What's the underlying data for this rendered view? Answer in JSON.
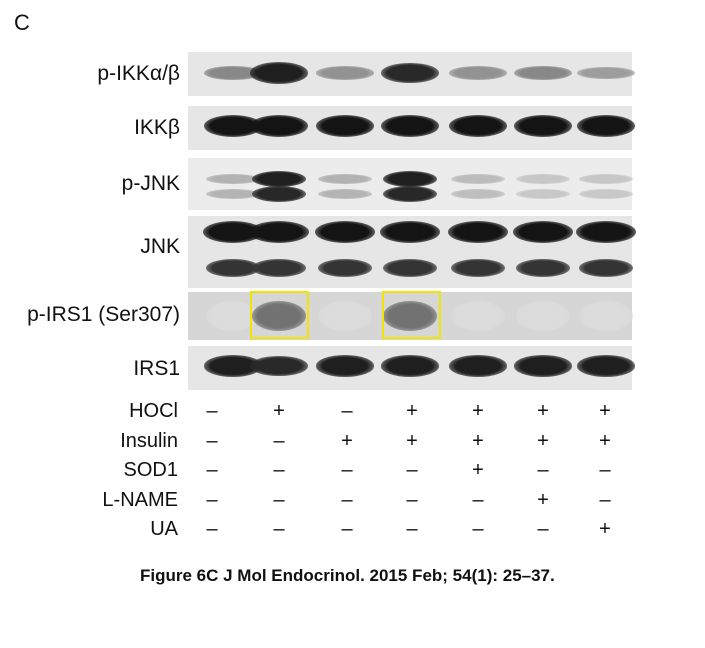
{
  "panel_letter": "C",
  "blots": [
    {
      "label": "p-IKKα/β"
    },
    {
      "label": "IKKβ"
    },
    {
      "label": "p-JNK"
    },
    {
      "label": "JNK"
    },
    {
      "label": "p-IRS1 (Ser307)"
    },
    {
      "label": "IRS1"
    }
  ],
  "conditions": [
    {
      "label": "HOCl",
      "values": [
        "–",
        "+",
        "–",
        "+",
        "+",
        "+",
        "+"
      ]
    },
    {
      "label": "Insulin",
      "values": [
        "–",
        "–",
        "+",
        "+",
        "+",
        "+",
        "+"
      ]
    },
    {
      "label": "SOD1",
      "values": [
        "–",
        "–",
        "–",
        "–",
        "+",
        "–",
        "–"
      ]
    },
    {
      "label": "L-NAME",
      "values": [
        "–",
        "–",
        "–",
        "–",
        "–",
        "+",
        "–"
      ]
    },
    {
      "label": "UA",
      "values": [
        "–",
        "–",
        "–",
        "–",
        "–",
        "–",
        "+"
      ]
    }
  ],
  "highlight_color": "#f2e600",
  "caption": "Figure 6C J Mol Endocrinol. 2015 Feb; 54(1): 25–37."
}
